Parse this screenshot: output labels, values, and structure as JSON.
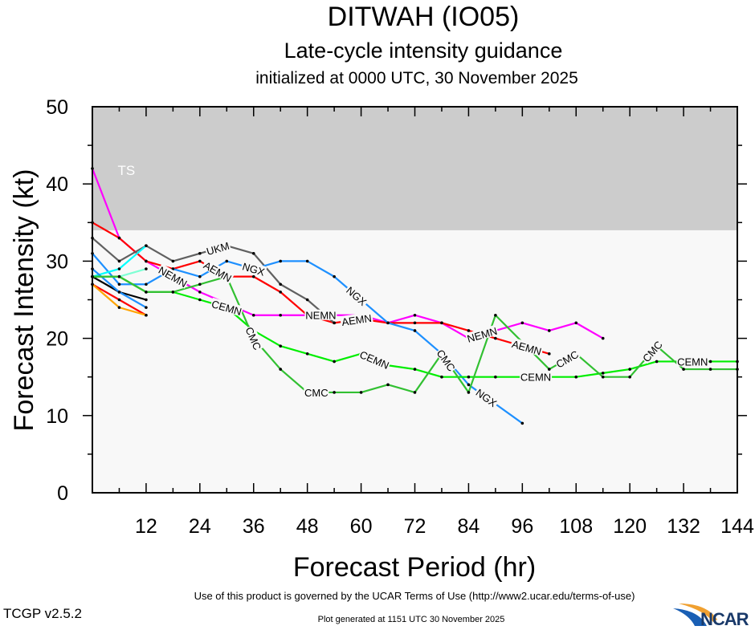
{
  "chart_data": {
    "type": "line",
    "title": "DITWAH (IO05)",
    "subtitle": "Late-cycle intensity guidance",
    "subtitle2": "initialized at 0000 UTC, 30 November 2025",
    "xlabel": "Forecast Period (hr)",
    "ylabel": "Forecast Intensity (kt)",
    "xlim": [
      0,
      144
    ],
    "ylim": [
      0,
      50
    ],
    "xticks": [
      12,
      24,
      36,
      48,
      60,
      72,
      84,
      96,
      108,
      120,
      132,
      144
    ],
    "yticks": [
      0,
      10,
      20,
      30,
      40,
      50
    ],
    "grid": false,
    "bands": [
      {
        "label": "TS",
        "from": 34,
        "to": 50,
        "color": "#cccccc"
      }
    ],
    "background_color": "#f8f8f8",
    "series": [
      {
        "name": "NEMN",
        "color": "#ff00ff",
        "x": [
          0,
          6,
          12,
          18,
          24,
          30,
          36,
          42,
          48,
          54,
          60,
          66,
          72,
          78,
          84,
          90,
          96,
          102,
          108,
          114
        ],
        "values": [
          42,
          33,
          30,
          28,
          26,
          24.5,
          23,
          23,
          23,
          23,
          23,
          22,
          23,
          22,
          20,
          21,
          22,
          21,
          22,
          20
        ],
        "label_at": [
          18,
          51,
          87
        ]
      },
      {
        "name": "AEMN",
        "color": "#ff0000",
        "x": [
          0,
          6,
          12,
          18,
          24,
          30,
          36,
          42,
          48,
          54,
          60,
          66,
          72,
          78,
          84,
          90,
          96,
          102
        ],
        "values": [
          35,
          33,
          30,
          29,
          30,
          28,
          28,
          26,
          23,
          22,
          22.5,
          22,
          22,
          22,
          21,
          20,
          19,
          18
        ],
        "label_at": [
          28,
          57,
          97
        ]
      },
      {
        "name": "UKM",
        "color": "#606060",
        "x": [
          0,
          6,
          12,
          18,
          24,
          30,
          36,
          42,
          48,
          54
        ],
        "values": [
          33,
          30,
          32,
          30,
          31,
          32,
          31,
          27,
          25,
          22
        ],
        "label_at": [
          28
        ]
      },
      {
        "name": "NGX",
        "color": "#1e90ff",
        "x": [
          0,
          6,
          12,
          18,
          24,
          30,
          36,
          42,
          48,
          54,
          60,
          66,
          72,
          78,
          84,
          90,
          96
        ],
        "values": [
          31,
          27,
          27,
          29,
          28,
          30,
          29,
          30,
          30,
          28,
          25,
          22,
          21,
          18,
          14,
          11.5,
          9
        ],
        "label_at": [
          27,
          59,
          88
        ]
      },
      {
        "color": "#00ffff",
        "x": [
          0,
          6,
          12
        ],
        "values": [
          28,
          29,
          32
        ]
      },
      {
        "color": "#7fffd4",
        "x": [
          0,
          6,
          12
        ],
        "values": [
          28,
          28,
          29
        ]
      },
      {
        "color": "#000000",
        "x": [
          0,
          6,
          12
        ],
        "values": [
          28,
          26,
          25
        ]
      },
      {
        "color": "#1e90ff",
        "x": [
          0,
          6,
          12
        ],
        "values": [
          29,
          26,
          24
        ]
      },
      {
        "color": "#ff0000",
        "x": [
          0,
          6,
          12
        ],
        "values": [
          27,
          25,
          23
        ]
      },
      {
        "color": "#ffa500",
        "x": [
          0,
          6,
          12
        ],
        "values": [
          27,
          24,
          23
        ]
      },
      {
        "name": "CEMN",
        "color": "#00ee00",
        "x": [
          0,
          6,
          12,
          18,
          24,
          30,
          36,
          42,
          48,
          54,
          60,
          66,
          72,
          78,
          84,
          90,
          96,
          102,
          108,
          114,
          120,
          126,
          132,
          138,
          144
        ],
        "values": [
          28,
          28,
          26,
          26,
          25,
          24,
          21,
          19,
          18,
          17,
          18,
          16.5,
          16,
          15,
          15,
          15,
          15,
          15,
          15,
          15.5,
          16,
          17,
          17,
          17,
          17
        ],
        "label_at": [
          30,
          63,
          99,
          134
        ]
      },
      {
        "name": "CMC",
        "color": "#32c032",
        "x": [
          0,
          6,
          12,
          18,
          24,
          30,
          36,
          42,
          48,
          54,
          60,
          66,
          72,
          78,
          84,
          90,
          96,
          102,
          108,
          114,
          120,
          126,
          132,
          138,
          144
        ],
        "values": [
          28,
          28,
          26,
          26,
          27,
          28,
          20,
          16,
          13,
          13,
          13,
          14,
          13,
          18,
          13,
          23,
          19.5,
          16,
          18,
          15,
          15,
          19,
          16,
          16,
          16
        ],
        "label_at": [
          31,
          50,
          79,
          97,
          125
        ]
      }
    ]
  },
  "footer": {
    "version": "TCGP v2.5.2",
    "terms": "Use of this product is governed by the UCAR Terms of Use (http://www2.ucar.edu/terms-of-use)",
    "generated": "Plot generated at 1151 UTC   30 November 2025",
    "logo": "NCAR"
  }
}
